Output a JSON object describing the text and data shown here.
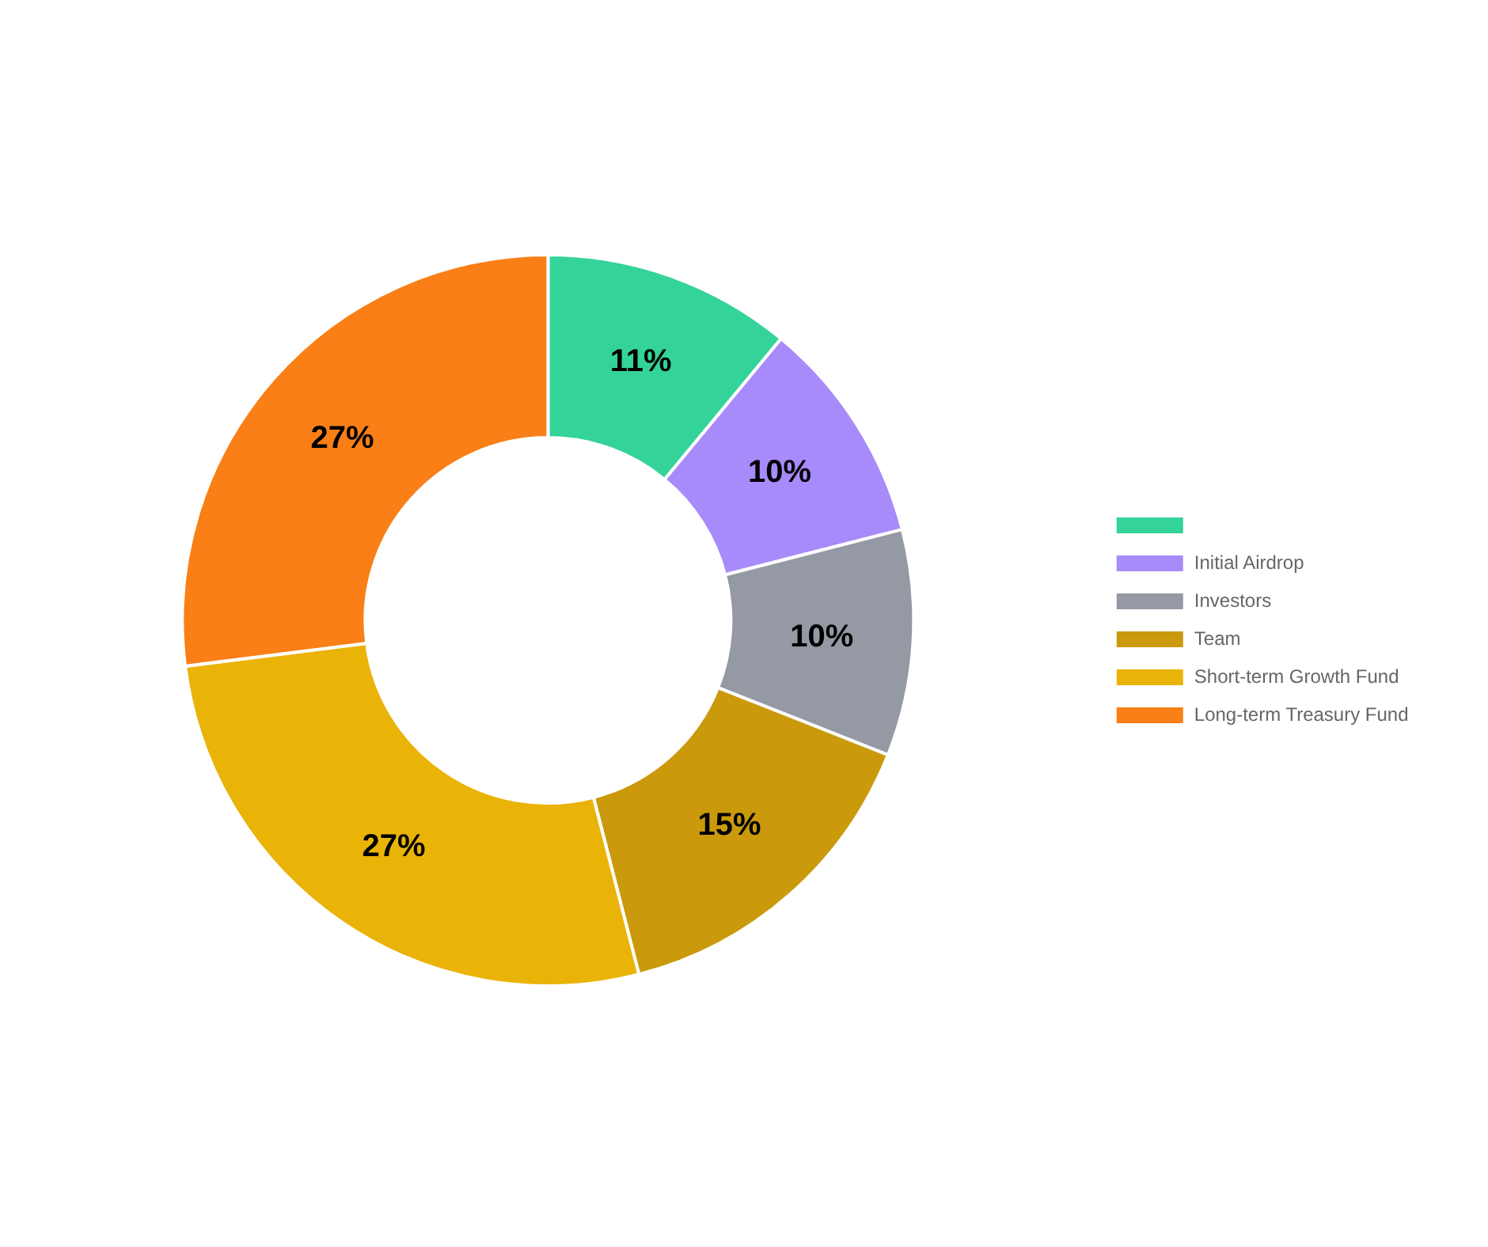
{
  "chart_data": {
    "type": "donut",
    "categories": [
      null,
      "Initial Airdrop",
      "Investors",
      "Team",
      "Short-term Growth Fund",
      "Long-term Treasury Fund"
    ],
    "values": [
      11,
      10,
      10,
      15,
      27,
      27
    ],
    "colors": [
      "#34d399",
      "#a78bfa",
      "#9499a3",
      "#ca9a0c",
      "#eab308",
      "#f97f16"
    ],
    "value_labels": [
      "11%",
      "10%",
      "10%",
      "15%",
      "27%",
      "27%"
    ],
    "legend": "right"
  }
}
